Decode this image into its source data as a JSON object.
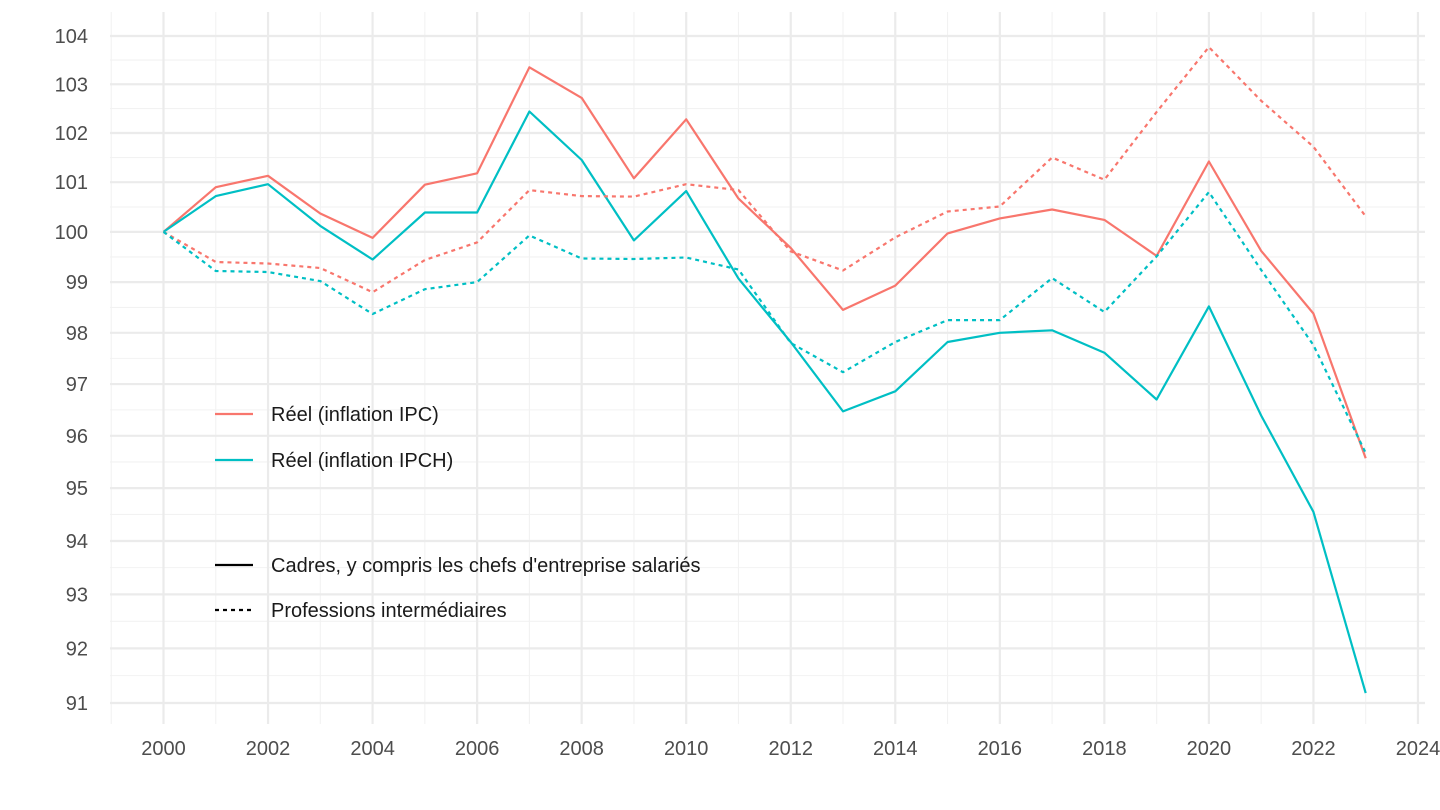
{
  "chart_data": {
    "type": "line",
    "title": "",
    "xlabel": "",
    "ylabel": "",
    "x": [
      2000,
      2001,
      2002,
      2003,
      2004,
      2005,
      2006,
      2007,
      2008,
      2009,
      2010,
      2011,
      2012,
      2013,
      2014,
      2015,
      2016,
      2017,
      2018,
      2019,
      2020,
      2021,
      2022,
      2023
    ],
    "xlim": [
      1999,
      2024
    ],
    "ylim": [
      90.7,
      104.25
    ],
    "scale": "log",
    "x_ticks": [
      2000,
      2002,
      2004,
      2006,
      2008,
      2010,
      2012,
      2014,
      2016,
      2018,
      2020,
      2022,
      2024
    ],
    "y_ticks": [
      91,
      92,
      93,
      94,
      95,
      96,
      97,
      98,
      99,
      100,
      101,
      102,
      103,
      104
    ],
    "grid": true,
    "series": [
      {
        "name": "Réel (inflation IPC)",
        "group": "Cadres, y compris les chefs d'entreprise salariés",
        "color": "#F8766D",
        "dash": "solid",
        "values": [
          100.0,
          100.9,
          101.13,
          100.37,
          99.88,
          100.95,
          101.18,
          103.35,
          102.72,
          101.08,
          102.28,
          100.67,
          99.68,
          98.45,
          98.93,
          99.97,
          100.27,
          100.45,
          100.24,
          99.52,
          101.42,
          99.62,
          98.38,
          95.57
        ]
      },
      {
        "name": "Réel (inflation IPCH)",
        "group": "Cadres, y compris les chefs d'entreprise salariés",
        "color": "#00BFC4",
        "dash": "solid",
        "values": [
          100.0,
          100.72,
          100.96,
          100.12,
          99.45,
          100.39,
          100.39,
          102.44,
          101.45,
          99.83,
          100.82,
          99.07,
          97.82,
          96.47,
          96.86,
          97.82,
          98.0,
          98.05,
          97.61,
          96.7,
          98.52,
          96.39,
          94.55,
          91.18
        ]
      },
      {
        "name": "Réel (inflation IPC)",
        "group": "Professions intermédiaires",
        "color": "#F8766D",
        "dash": "dashed",
        "values": [
          100.0,
          99.4,
          99.37,
          99.28,
          98.8,
          99.44,
          99.79,
          100.84,
          100.72,
          100.71,
          100.96,
          100.84,
          99.61,
          99.23,
          99.89,
          100.41,
          100.51,
          101.5,
          101.05,
          102.43,
          103.77,
          102.66,
          101.72,
          100.31
        ]
      },
      {
        "name": "Réel (inflation IPCH)",
        "group": "Professions intermédiaires",
        "color": "#00BFC4",
        "dash": "dashed",
        "values": [
          100.0,
          99.22,
          99.2,
          99.02,
          98.37,
          98.86,
          99.0,
          99.93,
          99.47,
          99.46,
          99.49,
          99.25,
          97.8,
          97.23,
          97.82,
          98.25,
          98.25,
          99.08,
          98.41,
          99.51,
          100.8,
          99.24,
          97.76,
          95.67
        ]
      }
    ],
    "legend": {
      "placement": "bottom-left",
      "color_items": [
        {
          "label": "Réel (inflation IPC)",
          "color": "#F8766D"
        },
        {
          "label": "Réel (inflation IPCH)",
          "color": "#00BFC4"
        }
      ],
      "linetype_items": [
        {
          "label": "Cadres, y compris les chefs d'entreprise salariés",
          "dash": "solid"
        },
        {
          "label": "Professions intermédiaires",
          "dash": "dashed"
        }
      ]
    }
  }
}
